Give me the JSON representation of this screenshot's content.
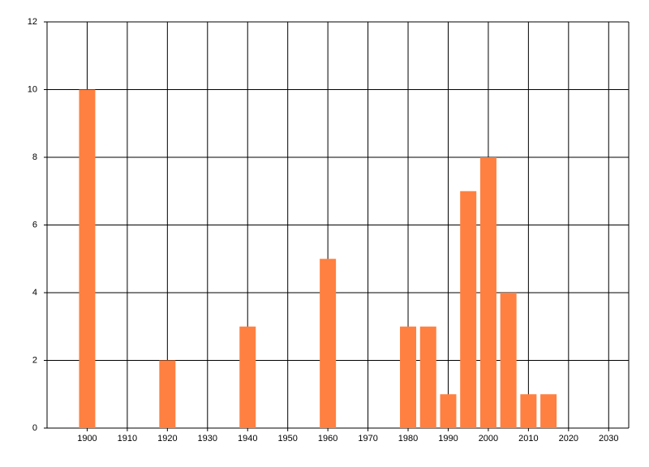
{
  "chart_data": {
    "type": "bar",
    "x": [
      1900,
      1920,
      1940,
      1960,
      1980,
      1985,
      1990,
      1995,
      2000,
      2005,
      2010,
      2015
    ],
    "values": [
      10,
      2,
      3,
      5,
      3,
      3,
      1,
      7,
      8,
      4,
      1,
      1
    ],
    "color": "#ff8040",
    "xlim": [
      1890,
      2035
    ],
    "xticks": [
      1900,
      1910,
      1920,
      1930,
      1940,
      1950,
      1960,
      1970,
      1980,
      1990,
      2000,
      2010,
      2020,
      2030
    ],
    "ylim": [
      0,
      12
    ],
    "yticks": [
      0,
      2,
      4,
      6,
      8,
      10,
      12
    ],
    "grid": true
  }
}
